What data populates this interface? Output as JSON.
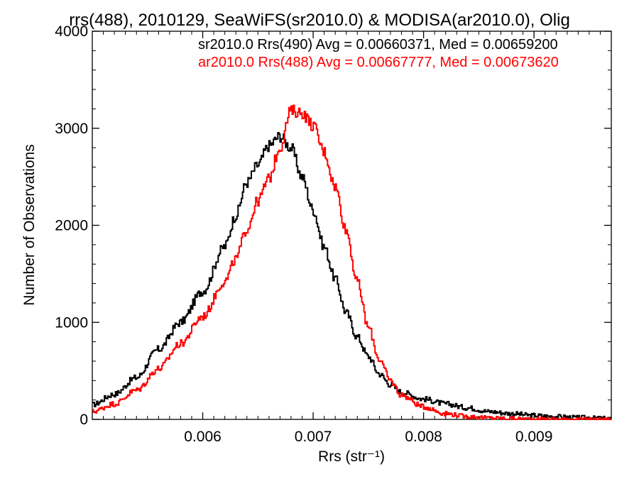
{
  "chart_data": {
    "type": "line",
    "title": "rrs(488), 2010129, SeaWiFS(sr2010.0) & MODISA(ar2010.0), Olig",
    "xlabel": "Rrs (str⁻¹)",
    "ylabel": "Number of Observations",
    "xlim": [
      0.005,
      0.0097
    ],
    "ylim": [
      0,
      4000
    ],
    "x_ticks": [
      {
        "value": 0.006,
        "label": "0.006"
      },
      {
        "value": 0.007,
        "label": "0.007"
      },
      {
        "value": 0.008,
        "label": "0.008"
      },
      {
        "value": 0.009,
        "label": "0.009"
      }
    ],
    "y_ticks": [
      {
        "value": 0,
        "label": "0"
      },
      {
        "value": 1000,
        "label": "1000"
      },
      {
        "value": 2000,
        "label": "2000"
      },
      {
        "value": 3000,
        "label": "3000"
      },
      {
        "value": 4000,
        "label": "4000"
      }
    ],
    "grid": false,
    "legend_position": "top-right",
    "colors": {
      "sr2010": "#000000",
      "ar2010": "#ff0000"
    },
    "series": [
      {
        "key": "sr2010",
        "legend": "sr2010.0 Rrs(490) Avg = 0.00660371, Med = 0.00659200",
        "points": [
          [
            0.005,
            150
          ],
          [
            0.0052,
            260
          ],
          [
            0.0054,
            430
          ],
          [
            0.0056,
            720
          ],
          [
            0.0058,
            1000
          ],
          [
            0.006,
            1320
          ],
          [
            0.0062,
            1780
          ],
          [
            0.0063,
            2100
          ],
          [
            0.0064,
            2440
          ],
          [
            0.0065,
            2620
          ],
          [
            0.0066,
            2820
          ],
          [
            0.0067,
            2920
          ],
          [
            0.0068,
            2800
          ],
          [
            0.0069,
            2500
          ],
          [
            0.007,
            2160
          ],
          [
            0.0071,
            1780
          ],
          [
            0.0072,
            1450
          ],
          [
            0.0073,
            1100
          ],
          [
            0.0074,
            850
          ],
          [
            0.0075,
            650
          ],
          [
            0.0076,
            470
          ],
          [
            0.0077,
            360
          ],
          [
            0.0078,
            280
          ],
          [
            0.008,
            210
          ],
          [
            0.0082,
            160
          ],
          [
            0.0084,
            120
          ],
          [
            0.0086,
            80
          ],
          [
            0.0088,
            60
          ],
          [
            0.009,
            40
          ],
          [
            0.0092,
            30
          ],
          [
            0.0094,
            20
          ],
          [
            0.0097,
            10
          ]
        ]
      },
      {
        "key": "ar2010",
        "legend": "ar2010.0 Rrs(488) Avg = 0.00667777, Med = 0.00673620",
        "points": [
          [
            0.005,
            80
          ],
          [
            0.0052,
            160
          ],
          [
            0.0054,
            300
          ],
          [
            0.0056,
            520
          ],
          [
            0.0058,
            780
          ],
          [
            0.006,
            1060
          ],
          [
            0.0062,
            1420
          ],
          [
            0.0063,
            1650
          ],
          [
            0.0064,
            1960
          ],
          [
            0.0065,
            2250
          ],
          [
            0.0066,
            2480
          ],
          [
            0.0067,
            2800
          ],
          [
            0.0068,
            3180
          ],
          [
            0.0069,
            3160
          ],
          [
            0.007,
            3030
          ],
          [
            0.0071,
            2760
          ],
          [
            0.0072,
            2400
          ],
          [
            0.0073,
            1950
          ],
          [
            0.0074,
            1420
          ],
          [
            0.0075,
            950
          ],
          [
            0.0076,
            620
          ],
          [
            0.0077,
            400
          ],
          [
            0.0078,
            250
          ],
          [
            0.008,
            130
          ],
          [
            0.0082,
            60
          ],
          [
            0.0084,
            30
          ],
          [
            0.0086,
            15
          ],
          [
            0.0088,
            8
          ],
          [
            0.009,
            4
          ],
          [
            0.0097,
            0
          ]
        ]
      }
    ]
  }
}
